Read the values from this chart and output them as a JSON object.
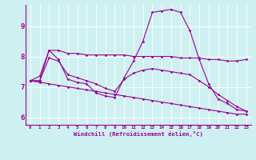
{
  "xlabel": "Windchill (Refroidissement éolien,°C)",
  "background_color": "#cff0f0",
  "line_color": "#990099",
  "xlim": [
    -0.5,
    23.5
  ],
  "ylim": [
    5.75,
    9.7
  ],
  "yticks": [
    6,
    7,
    8,
    9
  ],
  "xticks": [
    0,
    1,
    2,
    3,
    4,
    5,
    6,
    7,
    8,
    9,
    10,
    11,
    12,
    13,
    14,
    15,
    16,
    17,
    18,
    19,
    20,
    21,
    22,
    23
  ],
  "series": [
    {
      "x": [
        0,
        1,
        2,
        3,
        4,
        5,
        6,
        7,
        8,
        9,
        10,
        11,
        12,
        13,
        14,
        15,
        16,
        17,
        18,
        19,
        20,
        21,
        22,
        23
      ],
      "y": [
        7.2,
        7.35,
        8.2,
        7.9,
        7.25,
        7.15,
        7.1,
        6.8,
        6.7,
        6.65,
        7.3,
        7.85,
        8.5,
        9.45,
        9.5,
        9.55,
        9.45,
        8.85,
        7.9,
        7.1,
        6.6,
        6.45,
        6.25,
        6.2
      ]
    },
    {
      "comment": "flat line around 8.0-8.2, ending ~7.9",
      "x": [
        0,
        1,
        2,
        3,
        4,
        5,
        6,
        7,
        8,
        9,
        10,
        11,
        12,
        13,
        14,
        15,
        16,
        17,
        18,
        19,
        20,
        21,
        22,
        23
      ],
      "y": [
        7.2,
        7.2,
        8.2,
        8.2,
        8.1,
        8.1,
        8.05,
        8.05,
        8.05,
        8.05,
        8.05,
        8.0,
        8.0,
        8.0,
        8.0,
        8.0,
        7.95,
        7.95,
        7.95,
        7.9,
        7.9,
        7.85,
        7.85,
        7.9
      ]
    },
    {
      "x": [
        0,
        1,
        2,
        3,
        4,
        5,
        6,
        7,
        8,
        9,
        10,
        11,
        12,
        13,
        14,
        15,
        16,
        17,
        18,
        19,
        20,
        21,
        22,
        23
      ],
      "y": [
        7.2,
        7.2,
        7.95,
        7.85,
        7.4,
        7.3,
        7.2,
        7.1,
        6.95,
        6.85,
        7.25,
        7.45,
        7.55,
        7.6,
        7.55,
        7.5,
        7.45,
        7.4,
        7.2,
        7.0,
        6.75,
        6.55,
        6.35,
        6.2
      ]
    },
    {
      "x": [
        0,
        1,
        2,
        3,
        4,
        5,
        6,
        7,
        8,
        9,
        10,
        11,
        12,
        13,
        14,
        15,
        16,
        17,
        18,
        19,
        20,
        21,
        22,
        23
      ],
      "y": [
        7.2,
        7.15,
        7.1,
        7.05,
        7.0,
        6.95,
        6.9,
        6.85,
        6.8,
        6.75,
        6.7,
        6.65,
        6.6,
        6.55,
        6.5,
        6.45,
        6.4,
        6.35,
        6.3,
        6.25,
        6.2,
        6.15,
        6.1,
        6.1
      ]
    }
  ]
}
